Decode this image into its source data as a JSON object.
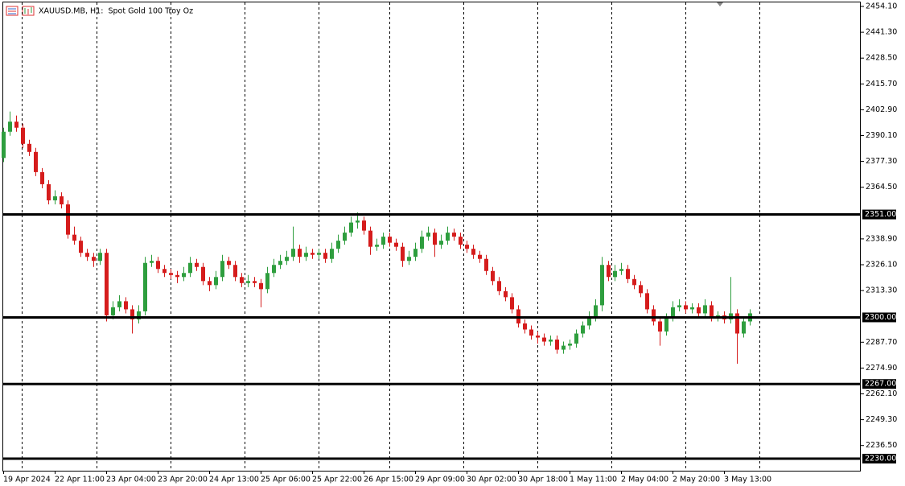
{
  "chart_data": {
    "type": "candlestick",
    "title": "XAUUSD.MB, H1:  Spot Gold 100 Troy Oz",
    "up_color": "#2e9e3e",
    "down_color": "#d51c1c",
    "ylim": [
      2230,
      2454.1
    ],
    "yticks": [
      {
        "value": 2454.1,
        "label": "2454.10"
      },
      {
        "value": 2441.3,
        "label": "2441.30"
      },
      {
        "value": 2428.5,
        "label": "2428.50"
      },
      {
        "value": 2415.7,
        "label": "2415.70"
      },
      {
        "value": 2402.9,
        "label": "2402.90"
      },
      {
        "value": 2390.1,
        "label": "2390.10"
      },
      {
        "value": 2377.3,
        "label": "2377.30"
      },
      {
        "value": 2364.5,
        "label": "2364.50"
      },
      {
        "value": 2338.9,
        "label": "2338.90"
      },
      {
        "value": 2326.1,
        "label": "2326.10"
      },
      {
        "value": 2313.3,
        "label": "2313.30"
      },
      {
        "value": 2287.7,
        "label": "2287.70"
      },
      {
        "value": 2274.9,
        "label": "2274.90"
      },
      {
        "value": 2262.1,
        "label": "2262.10"
      },
      {
        "value": 2249.3,
        "label": "2249.30"
      },
      {
        "value": 2236.5,
        "label": "2236.50"
      }
    ],
    "levels": [
      {
        "value": 2351,
        "label": "2351.00"
      },
      {
        "value": 2300,
        "label": "2300.00"
      },
      {
        "value": 2267,
        "label": "2267.00"
      },
      {
        "value": 2230,
        "label": "2230.00"
      }
    ],
    "categories": [
      "19 Apr 2024",
      null,
      null,
      null,
      null,
      null,
      null,
      null,
      "22 Apr 11:00",
      null,
      null,
      null,
      null,
      null,
      null,
      null,
      "23 Apr 04:00",
      null,
      null,
      null,
      null,
      null,
      null,
      null,
      "23 Apr 20:00",
      null,
      null,
      null,
      null,
      null,
      null,
      null,
      "24 Apr 13:00",
      null,
      null,
      null,
      null,
      null,
      null,
      null,
      "25 Apr 06:00",
      null,
      null,
      null,
      null,
      null,
      null,
      null,
      "25 Apr 22:00",
      null,
      null,
      null,
      null,
      null,
      null,
      null,
      "26 Apr 15:00",
      null,
      null,
      null,
      null,
      null,
      null,
      null,
      "29 Apr 09:00",
      null,
      null,
      null,
      null,
      null,
      null,
      null,
      "30 Apr 02:00",
      null,
      null,
      null,
      null,
      null,
      null,
      null,
      "30 Apr 18:00",
      null,
      null,
      null,
      null,
      null,
      null,
      null,
      "1 May 11:00",
      null,
      null,
      null,
      null,
      null,
      null,
      null,
      "2 May 04:00",
      null,
      null,
      null,
      null,
      null,
      null,
      null,
      "2 May 20:00",
      null,
      null,
      null,
      null,
      null,
      null,
      null,
      "3 May 13:00",
      null,
      null,
      null,
      null
    ],
    "ohlc": [
      [
        2379,
        2394,
        2377,
        2392
      ],
      [
        2392,
        2402,
        2390,
        2397
      ],
      [
        2397,
        2400,
        2392,
        2394
      ],
      [
        2394,
        2396,
        2384,
        2386
      ],
      [
        2386,
        2388,
        2380,
        2382
      ],
      [
        2382,
        2384,
        2370,
        2372
      ],
      [
        2372,
        2374,
        2364,
        2366
      ],
      [
        2366,
        2368,
        2356,
        2358
      ],
      [
        2358,
        2363,
        2356,
        2360
      ],
      [
        2360,
        2362,
        2354,
        2356
      ],
      [
        2356,
        2358,
        2339,
        2341
      ],
      [
        2341,
        2345,
        2336,
        2338
      ],
      [
        2338,
        2340,
        2330,
        2332
      ],
      [
        2332,
        2334,
        2328,
        2330
      ],
      [
        2330,
        2332,
        2325,
        2328
      ],
      [
        2328,
        2334,
        2326,
        2332
      ],
      [
        2332,
        2334,
        2298,
        2301
      ],
      [
        2301,
        2308,
        2299,
        2305
      ],
      [
        2305,
        2311,
        2303,
        2308
      ],
      [
        2308,
        2310,
        2302,
        2304
      ],
      [
        2304,
        2306,
        2292,
        2299
      ],
      [
        2299,
        2306,
        2297,
        2303
      ],
      [
        2303,
        2330,
        2301,
        2327
      ],
      [
        2327,
        2331,
        2325,
        2328
      ],
      [
        2328,
        2330,
        2322,
        2324
      ],
      [
        2324,
        2326,
        2320,
        2322
      ],
      [
        2322,
        2324,
        2319,
        2321
      ],
      [
        2321,
        2323,
        2317,
        2320
      ],
      [
        2320,
        2325,
        2318,
        2322
      ],
      [
        2322,
        2330,
        2320,
        2327
      ],
      [
        2327,
        2329,
        2323,
        2325
      ],
      [
        2325,
        2327,
        2316,
        2318
      ],
      [
        2318,
        2320,
        2313,
        2316
      ],
      [
        2316,
        2323,
        2314,
        2320
      ],
      [
        2320,
        2331,
        2318,
        2328
      ],
      [
        2328,
        2330,
        2324,
        2326
      ],
      [
        2326,
        2328,
        2318,
        2320
      ],
      [
        2320,
        2322,
        2315,
        2317
      ],
      [
        2317,
        2321,
        2315,
        2318
      ],
      [
        2318,
        2320,
        2315,
        2317
      ],
      [
        2317,
        2319,
        2305,
        2314
      ],
      [
        2314,
        2325,
        2312,
        2322
      ],
      [
        2322,
        2329,
        2320,
        2326
      ],
      [
        2326,
        2331,
        2324,
        2328
      ],
      [
        2328,
        2333,
        2326,
        2330
      ],
      [
        2330,
        2345,
        2328,
        2334
      ],
      [
        2334,
        2336,
        2327,
        2330
      ],
      [
        2330,
        2335,
        2328,
        2332
      ],
      [
        2332,
        2334,
        2329,
        2331
      ],
      [
        2331,
        2334,
        2329,
        2332
      ],
      [
        2332,
        2334,
        2327,
        2329
      ],
      [
        2329,
        2337,
        2327,
        2334
      ],
      [
        2334,
        2341,
        2332,
        2338
      ],
      [
        2338,
        2345,
        2336,
        2342
      ],
      [
        2342,
        2350,
        2340,
        2347
      ],
      [
        2347,
        2352,
        2344,
        2348
      ],
      [
        2348,
        2350,
        2341,
        2343
      ],
      [
        2343,
        2345,
        2331,
        2335
      ],
      [
        2335,
        2339,
        2333,
        2336
      ],
      [
        2336,
        2342,
        2334,
        2340
      ],
      [
        2340,
        2342,
        2335,
        2337
      ],
      [
        2337,
        2339,
        2333,
        2335
      ],
      [
        2335,
        2337,
        2325,
        2328
      ],
      [
        2328,
        2333,
        2326,
        2330
      ],
      [
        2330,
        2337,
        2328,
        2334
      ],
      [
        2334,
        2343,
        2332,
        2340
      ],
      [
        2340,
        2345,
        2338,
        2342
      ],
      [
        2342,
        2344,
        2330,
        2336
      ],
      [
        2336,
        2341,
        2334,
        2338
      ],
      [
        2338,
        2345,
        2336,
        2342
      ],
      [
        2342,
        2344,
        2338,
        2340
      ],
      [
        2340,
        2342,
        2334,
        2336
      ],
      [
        2336,
        2338,
        2332,
        2334
      ],
      [
        2334,
        2336,
        2329,
        2331
      ],
      [
        2331,
        2333,
        2327,
        2329
      ],
      [
        2329,
        2331,
        2321,
        2323
      ],
      [
        2323,
        2325,
        2316,
        2318
      ],
      [
        2318,
        2320,
        2311,
        2313
      ],
      [
        2313,
        2315,
        2308,
        2310
      ],
      [
        2310,
        2312,
        2302,
        2304
      ],
      [
        2304,
        2306,
        2295,
        2297
      ],
      [
        2297,
        2299,
        2292,
        2294
      ],
      [
        2294,
        2296,
        2289,
        2291
      ],
      [
        2291,
        2293,
        2287,
        2290
      ],
      [
        2290,
        2292,
        2286,
        2288
      ],
      [
        2288,
        2291,
        2286,
        2289
      ],
      [
        2289,
        2291,
        2282,
        2284
      ],
      [
        2284,
        2288,
        2282,
        2286
      ],
      [
        2286,
        2289,
        2284,
        2287
      ],
      [
        2287,
        2294,
        2285,
        2292
      ],
      [
        2292,
        2298,
        2290,
        2296
      ],
      [
        2296,
        2303,
        2294,
        2300
      ],
      [
        2300,
        2309,
        2298,
        2306
      ],
      [
        2306,
        2330,
        2303,
        2326
      ],
      [
        2326,
        2328,
        2318,
        2320
      ],
      [
        2320,
        2326,
        2318,
        2323
      ],
      [
        2323,
        2327,
        2321,
        2324
      ],
      [
        2324,
        2326,
        2317,
        2319
      ],
      [
        2319,
        2321,
        2314,
        2316
      ],
      [
        2316,
        2318,
        2310,
        2312
      ],
      [
        2312,
        2314,
        2302,
        2304
      ],
      [
        2304,
        2306,
        2296,
        2298
      ],
      [
        2298,
        2300,
        2286,
        2293
      ],
      [
        2293,
        2302,
        2291,
        2300
      ],
      [
        2300,
        2308,
        2298,
        2305
      ],
      [
        2305,
        2309,
        2303,
        2306
      ],
      [
        2306,
        2308,
        2302,
        2304
      ],
      [
        2304,
        2307,
        2302,
        2305
      ],
      [
        2305,
        2307,
        2300,
        2302
      ],
      [
        2302,
        2309,
        2300,
        2306
      ],
      [
        2306,
        2308,
        2298,
        2300
      ],
      [
        2300,
        2303,
        2298,
        2301
      ],
      [
        2301,
        2303,
        2297,
        2299
      ],
      [
        2299,
        2320,
        2297,
        2302
      ],
      [
        2302,
        2304,
        2277,
        2292
      ],
      [
        2292,
        2300,
        2290,
        2298
      ],
      [
        2298,
        2304,
        2296,
        2302
      ]
    ]
  }
}
